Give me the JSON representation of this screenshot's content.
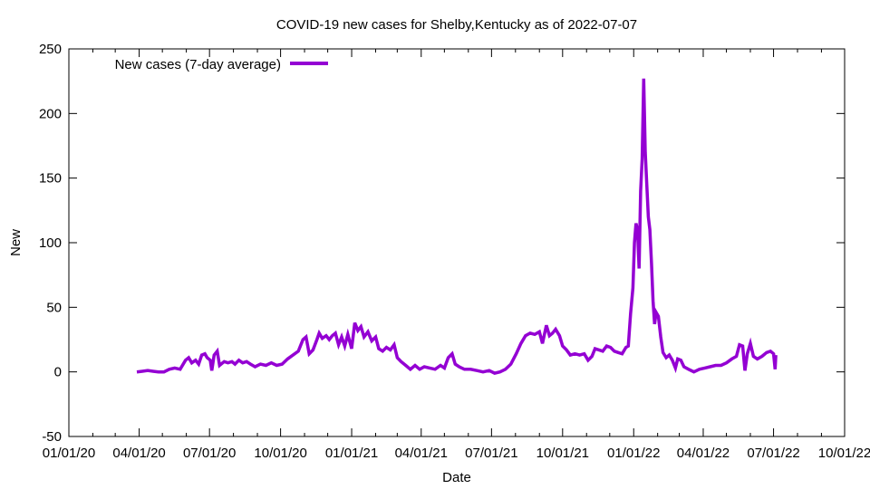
{
  "chart_data": {
    "type": "line",
    "title": "COVID-19 new cases for Shelby,Kentucky as of 2022-07-07",
    "xlabel": "Date",
    "ylabel": "New",
    "xlim": [
      "2020-01-01",
      "2022-10-01"
    ],
    "ylim": [
      -50,
      250
    ],
    "y_ticks": [
      -50,
      0,
      50,
      100,
      150,
      200,
      250
    ],
    "x_ticks": [
      {
        "date": "2020-01-01",
        "label": "01/01/20"
      },
      {
        "date": "2020-04-01",
        "label": "04/01/20"
      },
      {
        "date": "2020-07-01",
        "label": "07/01/20"
      },
      {
        "date": "2020-10-01",
        "label": "10/01/20"
      },
      {
        "date": "2021-01-01",
        "label": "01/01/21"
      },
      {
        "date": "2021-04-01",
        "label": "04/01/21"
      },
      {
        "date": "2021-07-01",
        "label": "07/01/21"
      },
      {
        "date": "2021-10-01",
        "label": "10/01/21"
      },
      {
        "date": "2022-01-01",
        "label": "01/01/22"
      },
      {
        "date": "2022-04-01",
        "label": "04/01/22"
      },
      {
        "date": "2022-07-01",
        "label": "07/01/22"
      },
      {
        "date": "2022-10-01",
        "label": "10/01/22"
      }
    ],
    "grid": false,
    "legend_position": "top-left",
    "colors": {
      "series": "#9400d3",
      "axis": "#000000",
      "background": "#ffffff"
    },
    "series": [
      {
        "name": "New cases (7-day average)",
        "points": [
          [
            "2020-03-29",
            0
          ],
          [
            "2020-04-05",
            0.5
          ],
          [
            "2020-04-12",
            1
          ],
          [
            "2020-04-19",
            0.5
          ],
          [
            "2020-04-26",
            0
          ],
          [
            "2020-05-03",
            0
          ],
          [
            "2020-05-10",
            2
          ],
          [
            "2020-05-17",
            3
          ],
          [
            "2020-05-24",
            2
          ],
          [
            "2020-05-31",
            9
          ],
          [
            "2020-06-04",
            11
          ],
          [
            "2020-06-08",
            7
          ],
          [
            "2020-06-13",
            9
          ],
          [
            "2020-06-17",
            6
          ],
          [
            "2020-06-21",
            13
          ],
          [
            "2020-06-25",
            14
          ],
          [
            "2020-06-28",
            11
          ],
          [
            "2020-07-02",
            9
          ],
          [
            "2020-07-04",
            1
          ],
          [
            "2020-07-07",
            13
          ],
          [
            "2020-07-11",
            16
          ],
          [
            "2020-07-14",
            5
          ],
          [
            "2020-07-20",
            8
          ],
          [
            "2020-07-25",
            7
          ],
          [
            "2020-07-30",
            8
          ],
          [
            "2020-08-03",
            6
          ],
          [
            "2020-08-08",
            9
          ],
          [
            "2020-08-13",
            7
          ],
          [
            "2020-08-18",
            8
          ],
          [
            "2020-08-23",
            6
          ],
          [
            "2020-08-29",
            4
          ],
          [
            "2020-09-05",
            6
          ],
          [
            "2020-09-12",
            5
          ],
          [
            "2020-09-19",
            7
          ],
          [
            "2020-09-26",
            5
          ],
          [
            "2020-10-03",
            6
          ],
          [
            "2020-10-10",
            10
          ],
          [
            "2020-10-17",
            13
          ],
          [
            "2020-10-24",
            16
          ],
          [
            "2020-10-30",
            25
          ],
          [
            "2020-11-03",
            27
          ],
          [
            "2020-11-07",
            14
          ],
          [
            "2020-11-12",
            17
          ],
          [
            "2020-11-17",
            25
          ],
          [
            "2020-11-20",
            30
          ],
          [
            "2020-11-24",
            26
          ],
          [
            "2020-11-29",
            28
          ],
          [
            "2020-12-03",
            25
          ],
          [
            "2020-12-07",
            28
          ],
          [
            "2020-12-11",
            30
          ],
          [
            "2020-12-15",
            21
          ],
          [
            "2020-12-19",
            27
          ],
          [
            "2020-12-23",
            20
          ],
          [
            "2020-12-27",
            29
          ],
          [
            "2021-01-01",
            18
          ],
          [
            "2021-01-05",
            38
          ],
          [
            "2021-01-09",
            32
          ],
          [
            "2021-01-13",
            35
          ],
          [
            "2021-01-17",
            27
          ],
          [
            "2021-01-22",
            31
          ],
          [
            "2021-01-27",
            24
          ],
          [
            "2021-02-01",
            27
          ],
          [
            "2021-02-05",
            18
          ],
          [
            "2021-02-10",
            16
          ],
          [
            "2021-02-15",
            19
          ],
          [
            "2021-02-20",
            17
          ],
          [
            "2021-02-25",
            21
          ],
          [
            "2021-03-01",
            11
          ],
          [
            "2021-03-06",
            8
          ],
          [
            "2021-03-12",
            5
          ],
          [
            "2021-03-18",
            2
          ],
          [
            "2021-03-24",
            5
          ],
          [
            "2021-03-30",
            2
          ],
          [
            "2021-04-05",
            4
          ],
          [
            "2021-04-12",
            3
          ],
          [
            "2021-04-19",
            2
          ],
          [
            "2021-04-26",
            5
          ],
          [
            "2021-05-01",
            3
          ],
          [
            "2021-05-06",
            11
          ],
          [
            "2021-05-11",
            14
          ],
          [
            "2021-05-15",
            6
          ],
          [
            "2021-05-20",
            4
          ],
          [
            "2021-05-27",
            2
          ],
          [
            "2021-06-04",
            2
          ],
          [
            "2021-06-12",
            1
          ],
          [
            "2021-06-20",
            0
          ],
          [
            "2021-06-28",
            1
          ],
          [
            "2021-07-05",
            -1
          ],
          [
            "2021-07-12",
            0
          ],
          [
            "2021-07-19",
            2
          ],
          [
            "2021-07-26",
            6
          ],
          [
            "2021-08-02",
            14
          ],
          [
            "2021-08-08",
            22
          ],
          [
            "2021-08-14",
            28
          ],
          [
            "2021-08-20",
            30
          ],
          [
            "2021-08-26",
            29
          ],
          [
            "2021-09-01",
            31
          ],
          [
            "2021-09-05",
            22
          ],
          [
            "2021-09-10",
            36
          ],
          [
            "2021-09-14",
            28
          ],
          [
            "2021-09-18",
            30
          ],
          [
            "2021-09-22",
            33
          ],
          [
            "2021-09-27",
            28
          ],
          [
            "2021-10-01",
            20
          ],
          [
            "2021-10-06",
            17
          ],
          [
            "2021-10-11",
            13
          ],
          [
            "2021-10-17",
            14
          ],
          [
            "2021-10-23",
            13
          ],
          [
            "2021-10-29",
            14
          ],
          [
            "2021-11-03",
            9
          ],
          [
            "2021-11-08",
            12
          ],
          [
            "2021-11-12",
            18
          ],
          [
            "2021-11-17",
            17
          ],
          [
            "2021-11-22",
            16
          ],
          [
            "2021-11-27",
            20
          ],
          [
            "2021-12-02",
            19
          ],
          [
            "2021-12-07",
            16
          ],
          [
            "2021-12-12",
            15
          ],
          [
            "2021-12-17",
            14
          ],
          [
            "2021-12-22",
            19
          ],
          [
            "2021-12-25",
            20
          ],
          [
            "2021-12-28",
            45
          ],
          [
            "2021-12-31",
            65
          ],
          [
            "2022-01-02",
            100
          ],
          [
            "2022-01-04",
            115
          ],
          [
            "2022-01-06",
            110
          ],
          [
            "2022-01-08",
            80
          ],
          [
            "2022-01-10",
            140
          ],
          [
            "2022-01-12",
            165
          ],
          [
            "2022-01-14",
            227
          ],
          [
            "2022-01-16",
            170
          ],
          [
            "2022-01-18",
            145
          ],
          [
            "2022-01-20",
            120
          ],
          [
            "2022-01-22",
            110
          ],
          [
            "2022-01-24",
            84
          ],
          [
            "2022-01-26",
            55
          ],
          [
            "2022-01-28",
            37
          ],
          [
            "2022-01-30",
            46
          ],
          [
            "2022-02-02",
            43
          ],
          [
            "2022-02-05",
            27
          ],
          [
            "2022-02-08",
            15
          ],
          [
            "2022-02-12",
            11
          ],
          [
            "2022-02-16",
            13
          ],
          [
            "2022-02-20",
            9
          ],
          [
            "2022-02-24",
            3
          ],
          [
            "2022-02-27",
            10
          ],
          [
            "2022-03-03",
            9
          ],
          [
            "2022-03-07",
            4
          ],
          [
            "2022-03-13",
            2
          ],
          [
            "2022-03-20",
            0
          ],
          [
            "2022-03-27",
            2
          ],
          [
            "2022-04-03",
            3
          ],
          [
            "2022-04-10",
            4
          ],
          [
            "2022-04-17",
            5
          ],
          [
            "2022-04-24",
            5
          ],
          [
            "2022-05-01",
            7
          ],
          [
            "2022-05-08",
            10
          ],
          [
            "2022-05-14",
            12
          ],
          [
            "2022-05-18",
            21
          ],
          [
            "2022-05-22",
            20
          ],
          [
            "2022-05-25",
            1
          ],
          [
            "2022-05-28",
            14
          ],
          [
            "2022-06-01",
            22
          ],
          [
            "2022-06-05",
            12
          ],
          [
            "2022-06-10",
            10
          ],
          [
            "2022-06-16",
            12
          ],
          [
            "2022-06-22",
            15
          ],
          [
            "2022-06-27",
            16
          ],
          [
            "2022-07-01",
            14
          ],
          [
            "2022-07-03",
            2
          ],
          [
            "2022-07-04",
            13
          ]
        ]
      }
    ]
  }
}
